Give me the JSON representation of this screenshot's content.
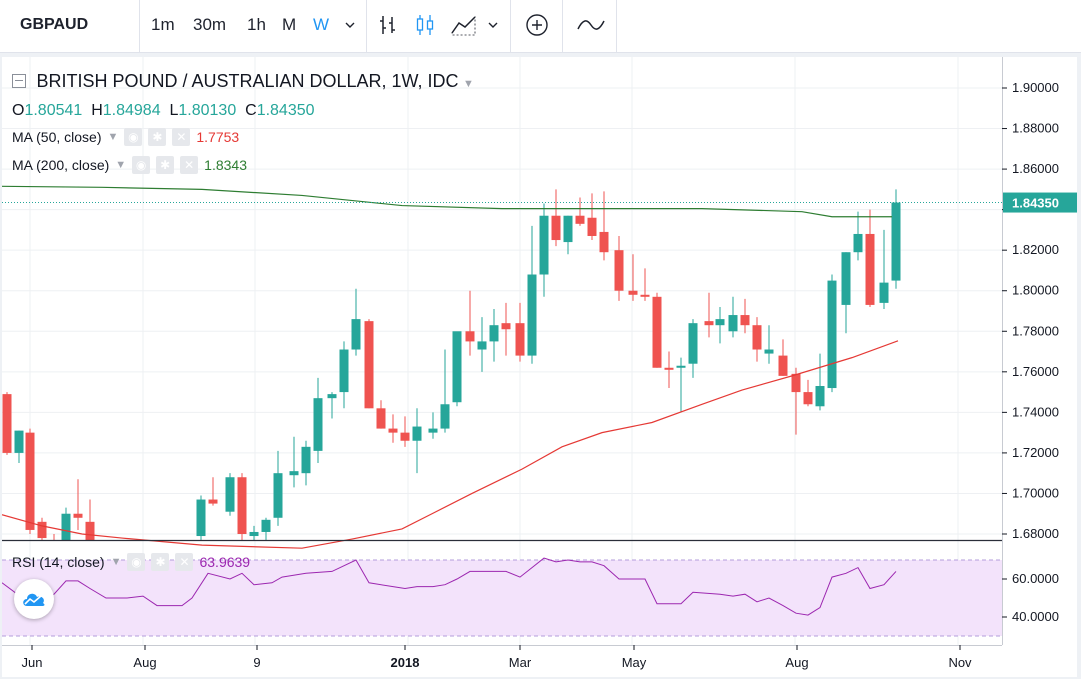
{
  "toolbar": {
    "symbol": "GBPAUD",
    "timeframes": [
      "1m",
      "30m",
      "1h",
      "M",
      "W"
    ],
    "active_timeframe": "W",
    "icons": [
      "chevron-down-icon",
      "bar-style-icon",
      "candle-style-icon",
      "area-style-icon",
      "chevron-down-icon",
      "add-compare-icon",
      "indicators-icon"
    ]
  },
  "legend": {
    "title": "BRITISH POUND / AUSTRALIAN DOLLAR, 1W, IDC",
    "o_label": "O",
    "o": "1.80541",
    "h_label": "H",
    "h": "1.84984",
    "l_label": "L",
    "l": "1.80130",
    "c_label": "C",
    "c": "1.84350"
  },
  "indicators": {
    "ma50": {
      "label": "MA (50, close)",
      "value": "1.7753",
      "color": "#e53935"
    },
    "ma200": {
      "label": "MA (200, close)",
      "value": "1.8343",
      "color": "#2e7d32"
    },
    "rsi": {
      "label": "RSI (14, close)",
      "value": "63.9639",
      "color": "#9c27b0"
    }
  },
  "price_scale": {
    "ticks": [
      "1.90000",
      "1.88000",
      "1.86000",
      "1.84000",
      "1.82000",
      "1.80000",
      "1.78000",
      "1.76000",
      "1.74000",
      "1.72000",
      "1.70000",
      "1.68000"
    ],
    "last_price": "1.84350"
  },
  "rsi_scale": {
    "ticks": [
      "60.0000",
      "40.0000"
    ]
  },
  "time_scale": {
    "labels": [
      "Jun",
      "Aug",
      "9",
      "2018",
      "Mar",
      "May",
      "Aug",
      "Nov"
    ]
  },
  "colors": {
    "up": "#26a69a",
    "down": "#ef5350",
    "accent": "#2196f3"
  }
}
